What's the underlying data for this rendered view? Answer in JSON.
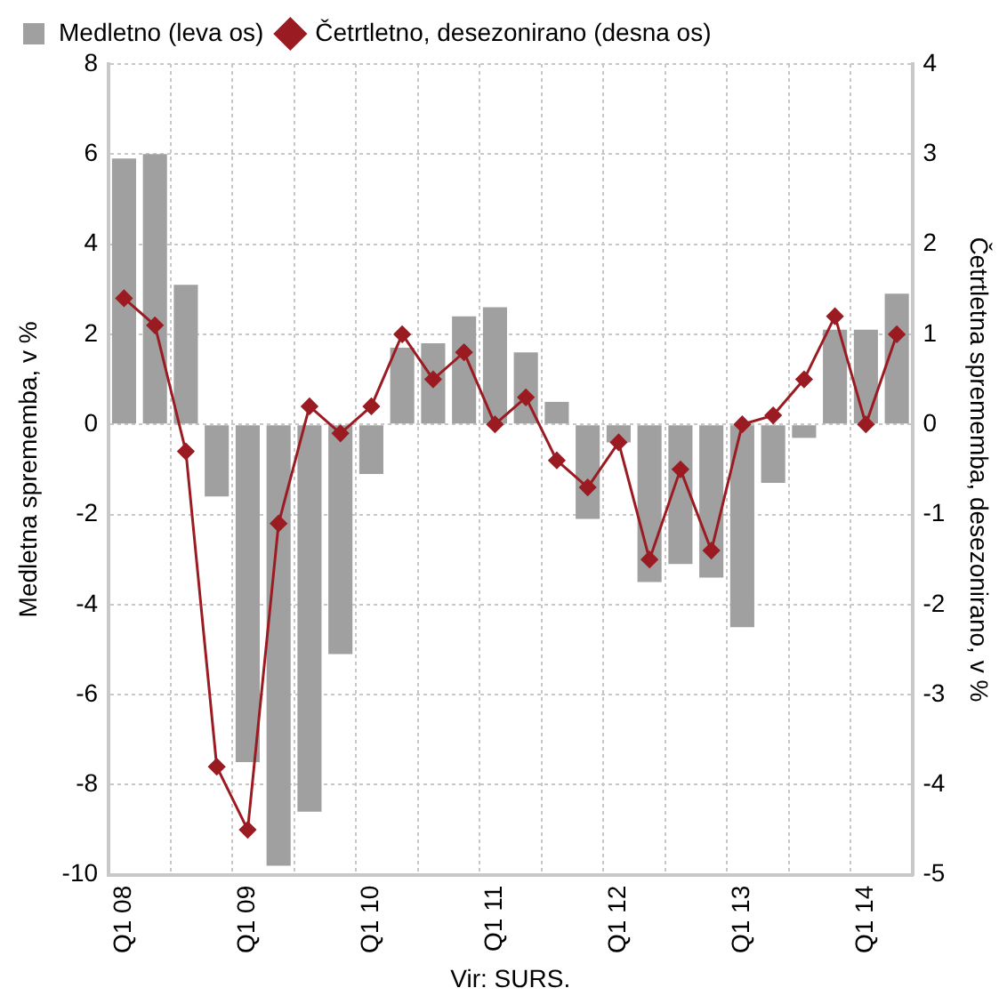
{
  "chart_data": {
    "type": "bar",
    "categories": [
      "Q1 08",
      null,
      null,
      null,
      "Q1 09",
      null,
      null,
      null,
      "Q1 10",
      null,
      null,
      null,
      "Q1 11",
      null,
      null,
      null,
      "Q1 12",
      null,
      null,
      null,
      "Q1 13",
      null,
      null,
      null,
      "Q1 14",
      null
    ],
    "series": [
      {
        "name": "Medletno (leva os)",
        "color": "#a0a0a0",
        "values": [
          5.9,
          6.0,
          3.1,
          -1.6,
          -7.5,
          -9.8,
          -8.6,
          -5.1,
          -1.1,
          1.7,
          1.8,
          2.4,
          2.6,
          1.6,
          0.5,
          -2.1,
          -0.4,
          -3.5,
          -3.1,
          -3.4,
          -4.5,
          -1.3,
          -0.3,
          2.1,
          2.1,
          2.9
        ]
      },
      {
        "name": "Četrtletno, desezonirano (desna os)",
        "type": "line",
        "axis": "y2",
        "color": "#9b1b22",
        "values": [
          1.4,
          1.1,
          -0.3,
          -3.8,
          -4.5,
          -1.1,
          0.2,
          -0.1,
          0.2,
          1.0,
          0.5,
          0.8,
          0.0,
          0.3,
          -0.4,
          -0.7,
          -0.2,
          -1.5,
          -0.5,
          -1.4,
          0.0,
          0.1,
          0.5,
          1.2,
          0.0,
          1.0
        ]
      }
    ],
    "ylabel": "Medletna sprememba, v %",
    "y2label": "Četrtletna sprememba, desezonirano, v %",
    "ylim": [
      -10,
      8
    ],
    "yticks": [
      -10,
      -8,
      -6,
      -4,
      -2,
      0,
      2,
      4,
      6,
      8
    ],
    "y2lim": [
      -5,
      4
    ],
    "y2ticks": [
      -5,
      -4,
      -3,
      -2,
      -1,
      0,
      1,
      2,
      3,
      4
    ],
    "annotations": [
      "Vir: SURS."
    ],
    "grid": true,
    "legend": "top",
    "marker": "diamond",
    "line_style": "solid"
  }
}
